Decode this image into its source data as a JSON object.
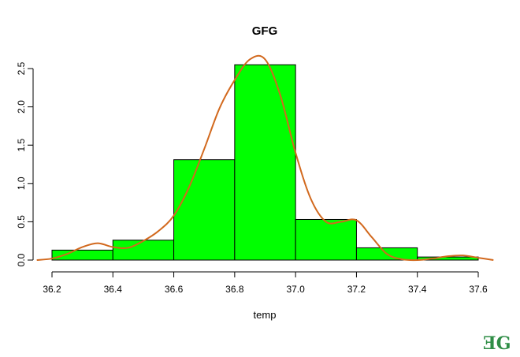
{
  "chart_data": {
    "type": "bar",
    "title": "GFG",
    "xlabel": "temp",
    "ylabel": "",
    "bin_edges": [
      36.2,
      36.4,
      36.6,
      36.8,
      37.0,
      37.2,
      37.4,
      37.6
    ],
    "values": [
      0.13,
      0.26,
      1.31,
      2.55,
      0.53,
      0.16,
      0.04
    ],
    "xlim": [
      36.2,
      37.6
    ],
    "ylim": [
      0,
      2.7
    ],
    "xticks": [
      "36.2",
      "36.4",
      "36.6",
      "36.8",
      "37.0",
      "37.2",
      "37.4",
      "37.6"
    ],
    "yticks": [
      "0.0",
      "0.5",
      "1.0",
      "1.5",
      "2.0",
      "2.5"
    ],
    "density_curve": {
      "x": [
        36.15,
        36.2,
        36.25,
        36.3,
        36.35,
        36.4,
        36.45,
        36.5,
        36.55,
        36.6,
        36.65,
        36.7,
        36.75,
        36.8,
        36.85,
        36.9,
        36.95,
        37.0,
        37.05,
        37.1,
        37.15,
        37.2,
        37.25,
        37.3,
        37.35,
        37.4,
        37.45,
        37.5,
        37.55,
        37.6,
        37.65
      ],
      "y": [
        0.0,
        0.02,
        0.08,
        0.17,
        0.22,
        0.17,
        0.16,
        0.25,
        0.38,
        0.58,
        0.95,
        1.45,
        1.98,
        2.35,
        2.62,
        2.62,
        2.15,
        1.4,
        0.8,
        0.5,
        0.5,
        0.52,
        0.3,
        0.08,
        0.01,
        0.0,
        0.02,
        0.05,
        0.06,
        0.03,
        0.0
      ]
    },
    "grid": false,
    "colors": {
      "bar_fill": "#00ff00",
      "bar_stroke": "#000000",
      "curve": "#d2691e"
    }
  },
  "watermark": {
    "text": "ƎG",
    "color": "#2f8d46"
  }
}
